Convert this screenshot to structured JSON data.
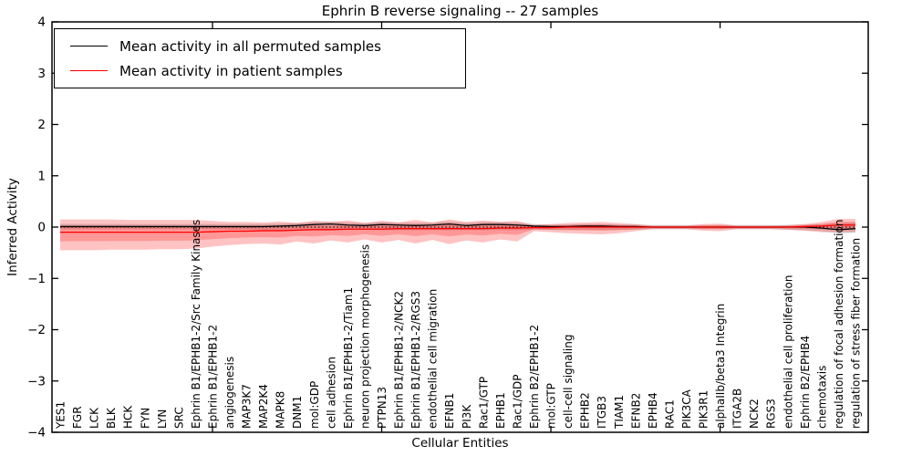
{
  "figure": {
    "title": "Ephrin B reverse signaling -- 27 samples",
    "xlabel": "Cellular Entities",
    "ylabel": "Inferred Activity"
  },
  "chart_data": {
    "type": "line",
    "title": "Ephrin B reverse signaling -- 27 samples",
    "xlabel": "Cellular Entities",
    "ylabel": "Inferred Activity",
    "ylim": [
      -4,
      4
    ],
    "yticks": [
      4,
      3,
      2,
      1,
      0,
      -1,
      -2,
      -3,
      -4
    ],
    "ytick_labels": [
      "4",
      "3",
      "2",
      "1",
      "0",
      "−1",
      "−2",
      "−3",
      "−4"
    ],
    "grid": false,
    "legend_position": "upper left",
    "zero_line": 0,
    "categories": [
      "YES1",
      "FGR",
      "LCK",
      "BLK",
      "HCK",
      "FYN",
      "LYN",
      "SRC",
      "Ephrin B1/EPHB1-2/Src Family Kinases",
      "Ephrin B1/EPHB1-2",
      "angiogenesis",
      "MAP3K7",
      "MAP2K4",
      "MAPK8",
      "DNM1",
      "mol:GDP",
      "cell adhesion",
      "Ephrin B1/EPHB1-2/Tiam1",
      "neuron projection morphogenesis",
      "PTPN13",
      "Ephrin B1/EPHB1-2/NCK2",
      "Ephrin B1/EPHB1-2/RGS3",
      "endothelial cell migration",
      "EFNB1",
      "PI3K",
      "Rac1/GTP",
      "EPHB1",
      "Rac1/GDP",
      "Ephrin B2/EPHB1-2",
      "mol:GTP",
      "cell-cell signaling",
      "EPHB2",
      "ITGB3",
      "TIAM1",
      "EFNB2",
      "EPHB4",
      "RAC1",
      "PIK3CA",
      "PIK3R1",
      "alphaIIb/beta3 Integrin",
      "ITGA2B",
      "NCK2",
      "RGS3",
      "endothelial cell proliferation",
      "Ephrin B2/EPHB4",
      "chemotaxis",
      "regulation of focal adhesion formation",
      "regulation of stress fiber formation"
    ],
    "series": [
      {
        "name": "Mean activity in all permuted samples",
        "color": "#000000",
        "values": [
          0.01,
          0.01,
          0.01,
          0.01,
          0.01,
          0.01,
          0.01,
          0.01,
          0.01,
          0.01,
          0.01,
          0.01,
          0.01,
          0.02,
          0.03,
          0.05,
          0.06,
          0.04,
          0.03,
          0.05,
          0.04,
          0.03,
          0.04,
          0.06,
          0.03,
          0.05,
          0.05,
          0.04,
          0.02,
          0.01,
          0.01,
          0.02,
          0.02,
          0.01,
          0.01,
          0.0,
          0.0,
          0.0,
          0.0,
          0.0,
          0.0,
          0.0,
          0.0,
          0.0,
          0.0,
          -0.02,
          -0.05,
          -0.03
        ]
      },
      {
        "name": "Mean activity in patient samples",
        "color": "#ff0000",
        "values": [
          -0.1,
          -0.1,
          -0.1,
          -0.1,
          -0.1,
          -0.1,
          -0.1,
          -0.1,
          -0.1,
          -0.09,
          -0.08,
          -0.08,
          -0.07,
          -0.07,
          -0.06,
          -0.05,
          -0.05,
          -0.04,
          -0.04,
          -0.04,
          -0.03,
          -0.03,
          -0.03,
          -0.03,
          -0.03,
          -0.03,
          -0.02,
          -0.02,
          -0.01,
          -0.01,
          0.0,
          0.0,
          0.0,
          0.0,
          0.0,
          0.0,
          0.0,
          0.0,
          0.0,
          0.0,
          0.0,
          0.0,
          0.0,
          0.0,
          0.01,
          0.02,
          0.04,
          0.04
        ]
      }
    ],
    "bands": [
      {
        "name": "permuted samples std band",
        "color": "#aaaaaa",
        "opacity": 0.5,
        "upper": [
          0.06,
          0.06,
          0.06,
          0.06,
          0.06,
          0.06,
          0.06,
          0.06,
          0.06,
          0.06,
          0.06,
          0.06,
          0.06,
          0.07,
          0.08,
          0.1,
          0.11,
          0.09,
          0.08,
          0.1,
          0.09,
          0.08,
          0.09,
          0.11,
          0.08,
          0.1,
          0.1,
          0.09,
          0.06,
          0.05,
          0.05,
          0.06,
          0.06,
          0.05,
          0.05,
          0.04,
          0.04,
          0.04,
          0.04,
          0.04,
          0.04,
          0.04,
          0.04,
          0.04,
          0.05,
          0.06,
          0.08,
          0.09
        ],
        "lower": [
          -0.04,
          -0.04,
          -0.04,
          -0.04,
          -0.04,
          -0.04,
          -0.04,
          -0.04,
          -0.04,
          -0.04,
          -0.05,
          -0.05,
          -0.05,
          -0.05,
          -0.05,
          -0.05,
          -0.05,
          -0.05,
          -0.05,
          -0.06,
          -0.06,
          -0.06,
          -0.06,
          -0.06,
          -0.06,
          -0.06,
          -0.06,
          -0.06,
          -0.05,
          -0.05,
          -0.05,
          -0.05,
          -0.05,
          -0.05,
          -0.05,
          -0.04,
          -0.04,
          -0.04,
          -0.04,
          -0.04,
          -0.04,
          -0.04,
          -0.04,
          -0.05,
          -0.06,
          -0.08,
          -0.12,
          -0.11
        ]
      },
      {
        "name": "patient samples std band",
        "color": "#ff2020",
        "opacity": 0.27,
        "center_series": 1,
        "inner_scale": 0.5,
        "upper": [
          0.15,
          0.15,
          0.15,
          0.15,
          0.14,
          0.14,
          0.14,
          0.14,
          0.14,
          0.12,
          0.1,
          0.1,
          0.09,
          0.11,
          0.08,
          0.12,
          0.1,
          0.13,
          0.08,
          0.12,
          0.09,
          0.14,
          0.09,
          0.15,
          0.1,
          0.13,
          0.1,
          0.12,
          0.04,
          0.06,
          0.08,
          0.09,
          0.1,
          0.08,
          0.06,
          0.03,
          0.03,
          0.03,
          0.06,
          0.07,
          0.03,
          0.03,
          0.03,
          0.04,
          0.06,
          0.1,
          0.16,
          0.16
        ],
        "lower": [
          -0.45,
          -0.45,
          -0.45,
          -0.44,
          -0.44,
          -0.44,
          -0.43,
          -0.43,
          -0.42,
          -0.38,
          -0.35,
          -0.33,
          -0.32,
          -0.34,
          -0.28,
          -0.32,
          -0.26,
          -0.3,
          -0.24,
          -0.3,
          -0.25,
          -0.32,
          -0.25,
          -0.33,
          -0.26,
          -0.3,
          -0.24,
          -0.28,
          -0.08,
          -0.1,
          -0.12,
          -0.13,
          -0.14,
          -0.12,
          -0.08,
          -0.04,
          -0.04,
          -0.04,
          -0.07,
          -0.08,
          -0.04,
          -0.04,
          -0.04,
          -0.05,
          -0.07,
          -0.1,
          -0.1,
          -0.09
        ]
      }
    ],
    "x_tick_indices": [
      9,
      19,
      29,
      39
    ]
  }
}
